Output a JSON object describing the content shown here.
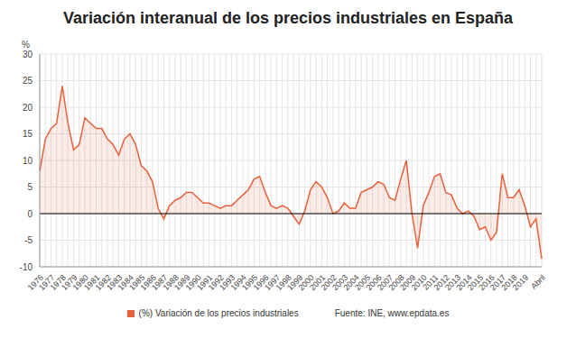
{
  "chart_data": {
    "type": "area",
    "title": "Variación interanual de los precios industriales en España",
    "y_label": "%",
    "source": "Fuente: INE, www.epdata.es",
    "categories": [
      "1976",
      null,
      "1977",
      null,
      "1978",
      null,
      "1979",
      null,
      "1980",
      null,
      "1981",
      null,
      "1982",
      null,
      "1983",
      null,
      "1984",
      null,
      "1985",
      null,
      "1986",
      null,
      "1987",
      null,
      "1988",
      null,
      "1989",
      null,
      "1990",
      null,
      "1991",
      null,
      "1992",
      null,
      "1993",
      null,
      "1994",
      null,
      "1995",
      null,
      "1996",
      null,
      "1997",
      null,
      "1998",
      null,
      "1999",
      null,
      "2000",
      null,
      "2001",
      null,
      "2002",
      null,
      "2003",
      null,
      "2004",
      null,
      "2005",
      null,
      "2006",
      null,
      "2007",
      null,
      "2008",
      null,
      "2009",
      null,
      "2010",
      null,
      "2011",
      null,
      "2012",
      null,
      "2013",
      null,
      "2014",
      null,
      "2015",
      null,
      "2016",
      null,
      "2017",
      null,
      "2018",
      null,
      "2019",
      null,
      null,
      "Abril"
    ],
    "series": [
      {
        "name": "(%) Variación de los precios industriales",
        "color": "#e8603c",
        "values": [
          8,
          14,
          16,
          17,
          24,
          17,
          12,
          13,
          18,
          17,
          16,
          16,
          14,
          13,
          11,
          14,
          15,
          13,
          9,
          8,
          6,
          1,
          -1,
          1.5,
          2.5,
          3,
          4,
          4,
          3,
          2,
          2,
          1.5,
          1,
          1.5,
          1.5,
          2.5,
          3.5,
          4.5,
          6.5,
          7,
          4,
          1.5,
          1,
          1.5,
          1,
          -0.5,
          -2,
          0.5,
          4.5,
          6,
          5,
          3,
          0,
          0.5,
          2,
          1,
          1,
          4,
          4.5,
          5,
          6,
          5.5,
          3,
          2.5,
          6.5,
          10,
          0,
          -6.5,
          1.5,
          4,
          7,
          7.5,
          4,
          3.5,
          1,
          0,
          0.5,
          -0.5,
          -3,
          -2.5,
          -5,
          -3.5,
          7.5,
          3,
          3,
          4.5,
          1.5,
          -2.5,
          -1,
          -8.5
        ]
      }
    ],
    "ylim": [
      -10,
      30
    ],
    "yticks": [
      -10,
      -5,
      0,
      5,
      10,
      15,
      20,
      25,
      30
    ],
    "grid": true,
    "legend": "bottom"
  }
}
